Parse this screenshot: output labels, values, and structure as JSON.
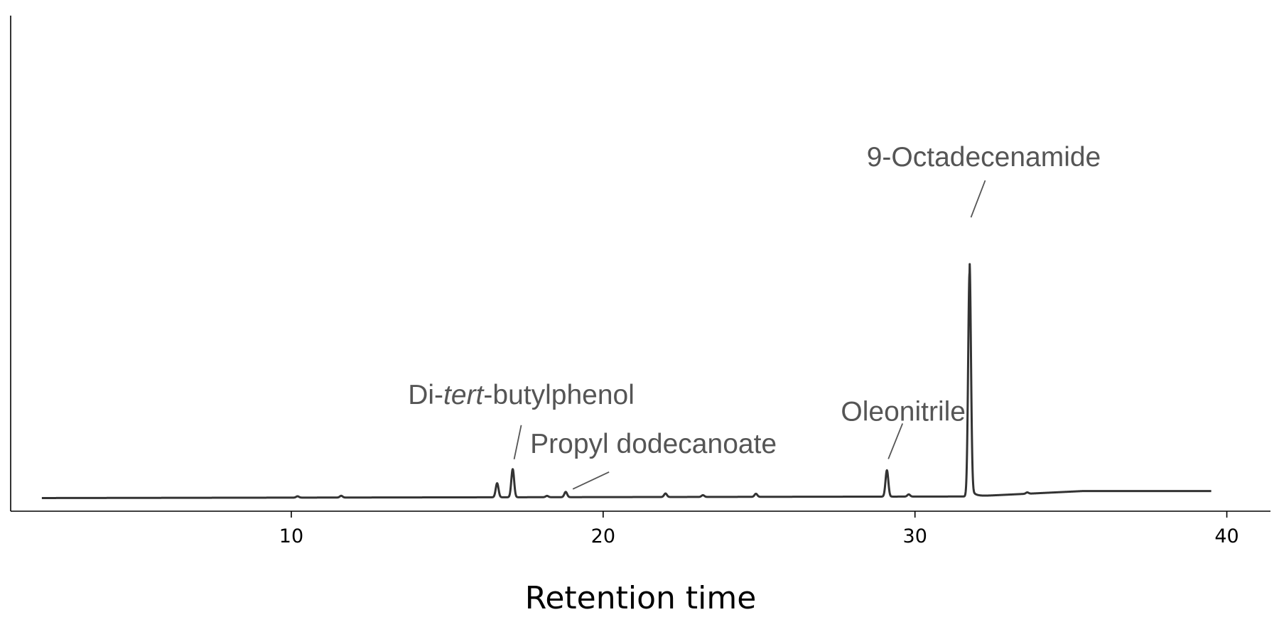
{
  "chart_data": {
    "type": "line",
    "xlabel": "Retention time",
    "ylabel": "",
    "xlim": [
      1.0,
      41.4
    ],
    "ylim": [
      -0.15,
      5.5
    ],
    "xticks": [
      10,
      20,
      30,
      40
    ],
    "y_axis_ticks_shown": false,
    "grid": false,
    "baseline": {
      "x_start": 2.0,
      "x_end": 39.5,
      "start_level": 0.0,
      "end_level": 0.08
    },
    "peaks": [
      {
        "x": 10.2,
        "height": 0.015
      },
      {
        "x": 11.6,
        "height": 0.02
      },
      {
        "x": 16.6,
        "height": 0.16
      },
      {
        "x": 17.1,
        "height": 0.32
      },
      {
        "x": 18.2,
        "height": 0.015
      },
      {
        "x": 18.8,
        "height": 0.06
      },
      {
        "x": 22.0,
        "height": 0.04
      },
      {
        "x": 23.2,
        "height": 0.02
      },
      {
        "x": 24.9,
        "height": 0.035
      },
      {
        "x": 29.1,
        "height": 0.3
      },
      {
        "x": 29.8,
        "height": 0.025
      },
      {
        "x": 31.75,
        "height": 2.55
      },
      {
        "x": 33.6,
        "height": 0.015
      }
    ],
    "annotations": [
      {
        "pre": "Di-",
        "em": "tert",
        "post": "-butylphenol",
        "peak_x": 17.1
      },
      {
        "pre": "Propyl dodecanoate",
        "em": "",
        "post": "",
        "peak_x": 18.8
      },
      {
        "pre": "Oleonitrile",
        "em": "",
        "post": "",
        "peak_x": 29.1
      },
      {
        "pre": "9-Octadecenamide",
        "em": "",
        "post": "",
        "peak_x": 31.75
      }
    ]
  }
}
